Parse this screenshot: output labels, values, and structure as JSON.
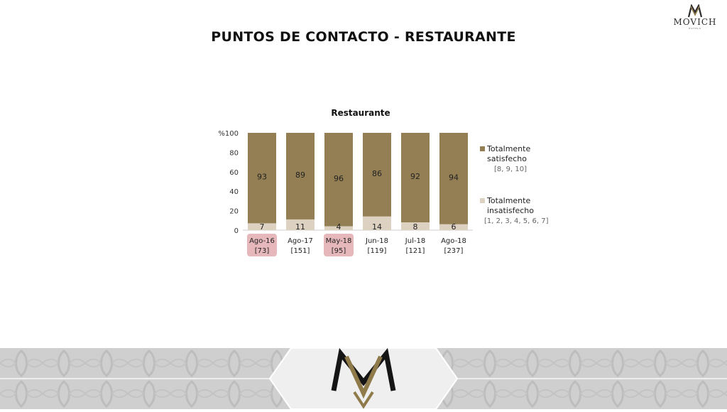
{
  "brand": {
    "name": "MOVICH",
    "tagline": "HOTELS"
  },
  "page_title": "PUNTOS DE CONTACTO - RESTAURANTE",
  "colors": {
    "satisfied": "#947f54",
    "dissatisfied": "#ddd2c2",
    "highlight_label": "#e7b8bb",
    "footer_bg": "#d0d0d0",
    "footer_plate": "#eeeeee",
    "logo_gold": "#8f7a4a"
  },
  "chart_data": {
    "type": "bar",
    "stacked": true,
    "title": "Restaurante",
    "categories": [
      "Ago-16",
      "Ago-17",
      "May-18",
      "Jun-18",
      "Jul-18",
      "Ago-18"
    ],
    "sample_sizes": [
      "[73]",
      "[151]",
      "[95]",
      "[119]",
      "[121]",
      "[237]"
    ],
    "highlighted_categories": [
      "Ago-16",
      "May-18"
    ],
    "series": [
      {
        "name": "Totalmente insatisfecho",
        "sub_label": "[1, 2, 3, 4, 5, 6, 7]",
        "values": [
          7,
          11,
          4,
          14,
          8,
          6
        ]
      },
      {
        "name": "Totalmente satisfecho",
        "sub_label": "[8, 9, 10]",
        "values": [
          93,
          89,
          96,
          86,
          92,
          94
        ]
      }
    ],
    "ylim": [
      0,
      100
    ],
    "yticks": [
      "0",
      "20",
      "40",
      "60",
      "80",
      "%100"
    ],
    "ytick_values": [
      0,
      20,
      40,
      60,
      80,
      100
    ],
    "legend_position": "right",
    "grid": false
  }
}
